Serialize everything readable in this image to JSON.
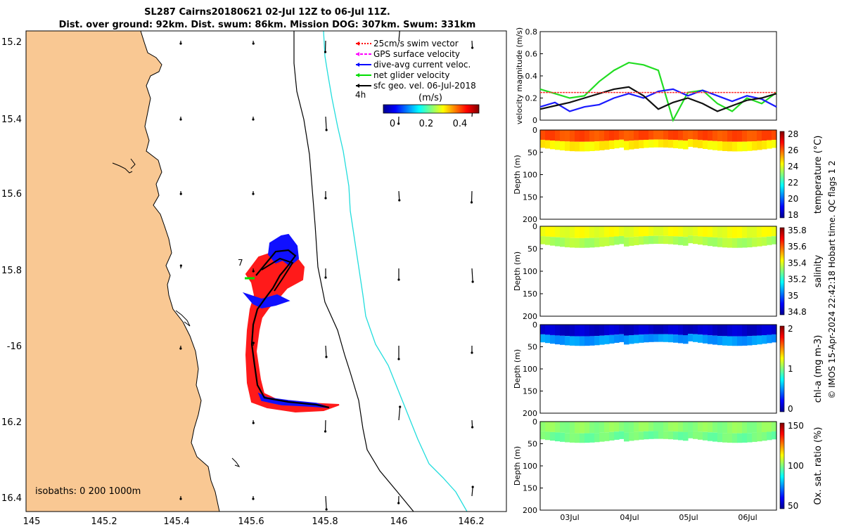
{
  "title": {
    "line1": "SL287 Cairns20180621 02-Jul 12Z to 06-Jul 11Z.",
    "line2": "Dist. over ground: 92km. Dist. swum: 86km. Mission DOG: 307km. Swum: 331km"
  },
  "map": {
    "lon_ticks": [
      "145",
      "145.2",
      "145.4",
      "145.6",
      "145.8",
      "146",
      "146.2"
    ],
    "lat_ticks": [
      "15.2",
      "15.4",
      "15.6",
      "15.8",
      "-16",
      "16.2",
      "16.4"
    ],
    "lon_range": [
      145,
      146.3
    ],
    "lat_range": [
      -16.45,
      -15.15
    ],
    "legend": [
      {
        "label": "25cm/s swim vector",
        "color": "#ff0000",
        "style": "dotted"
      },
      {
        "label": "GPS surface velocity",
        "color": "#ff00ff",
        "style": "dashed"
      },
      {
        "label": "dive-avg current veloc.",
        "color": "#0000ff",
        "style": "solid"
      },
      {
        "label": "net glider velocity",
        "color": "#00dd00",
        "style": "solid"
      },
      {
        "label": "sfc geo. vel. 06-Jul-2018",
        "color": "#000000",
        "style": "solid"
      }
    ],
    "label_4h": "4h",
    "label_7": "7",
    "colorbar_label": "(m/s)",
    "colorbar_ticks": [
      "0",
      "0.2",
      "0.4"
    ],
    "isobaths_text": "isobaths: 0   200  1000m",
    "land_color": "#f9c893"
  },
  "footer": "© IMOS 15-Apr-2024 22:42:18 Hobart time. QC flags 1  2",
  "time_ticks": [
    "03Jul",
    "04Jul",
    "05Jul",
    "06Jul"
  ],
  "chart_data": [
    {
      "type": "line",
      "ylabel": "velocity magnitude (m/s)",
      "ylim": [
        0,
        0.8
      ],
      "yticks": [
        "0",
        "0.2",
        "0.4",
        "0.6",
        "0.8"
      ],
      "x": [
        "02Jul12",
        "02Jul18",
        "03Jul00",
        "03Jul06",
        "03Jul12",
        "03Jul18",
        "04Jul00",
        "04Jul06",
        "04Jul12",
        "04Jul18",
        "05Jul00",
        "05Jul06",
        "05Jul12",
        "05Jul18",
        "06Jul00",
        "06Jul06",
        "06Jul11"
      ],
      "series": [
        {
          "name": "net glider velocity",
          "color": "#22dd22",
          "values": [
            0.28,
            0.24,
            0.2,
            0.22,
            0.35,
            0.45,
            0.52,
            0.5,
            0.45,
            0.0,
            0.25,
            0.27,
            0.15,
            0.08,
            0.2,
            0.15,
            0.25
          ]
        },
        {
          "name": "dive-avg current veloc.",
          "color": "#1a1aff",
          "values": [
            0.12,
            0.16,
            0.08,
            0.12,
            0.14,
            0.2,
            0.24,
            0.2,
            0.26,
            0.28,
            0.22,
            0.27,
            0.22,
            0.17,
            0.22,
            0.19,
            0.12
          ]
        },
        {
          "name": "sfc geo. vel.",
          "color": "#111111",
          "values": [
            0.1,
            0.13,
            0.16,
            0.2,
            0.24,
            0.28,
            0.3,
            0.22,
            0.1,
            0.16,
            0.2,
            0.15,
            0.08,
            0.13,
            0.18,
            0.2,
            0.24
          ]
        },
        {
          "name": "25cm/s swim vector",
          "color": "#ff3333",
          "values": [
            0.25,
            0.25,
            0.25,
            0.25,
            0.25,
            0.25,
            0.25,
            0.25,
            0.25,
            0.25,
            0.25,
            0.25,
            0.25,
            0.25,
            0.25,
            0.25,
            0.25
          ]
        }
      ]
    },
    {
      "type": "heatmap",
      "label": "temperature (°C)",
      "yticks": [
        "0",
        "50",
        "100",
        "150",
        "200"
      ],
      "ylabel": "Depth (m)",
      "color_ticks": [
        "28",
        "26",
        "24",
        "22",
        "20",
        "18"
      ],
      "crange": [
        17,
        28
      ],
      "surface_value": 25.8,
      "deep_value": 24.0
    },
    {
      "type": "heatmap",
      "label": "salinity",
      "yticks": [
        "0",
        "50",
        "100",
        "150",
        "200"
      ],
      "ylabel": "Depth (m)",
      "color_ticks": [
        "35.8",
        "35.6",
        "35.4",
        "35.2",
        "35",
        "34.8"
      ],
      "crange": [
        34.75,
        35.85
      ],
      "surface_value": 35.42,
      "deep_value": 35.35
    },
    {
      "type": "heatmap",
      "label": "chl-a (mg m-3)",
      "yticks": [
        "0",
        "50",
        "100",
        "150",
        "200"
      ],
      "ylabel": "Depth (m)",
      "color_ticks": [
        "2",
        "1",
        "0"
      ],
      "crange": [
        0,
        2
      ],
      "surface_value": 0.15,
      "deep_value": 0.55
    },
    {
      "type": "heatmap",
      "label": "Ox. sat. ratio (%)",
      "yticks": [
        "0",
        "50",
        "100",
        "150",
        "200"
      ],
      "ylabel": "Depth (m)",
      "color_ticks": [
        "150",
        "100",
        "50"
      ],
      "crange": [
        25,
        175
      ],
      "surface_value": 102,
      "deep_value": 98
    }
  ]
}
